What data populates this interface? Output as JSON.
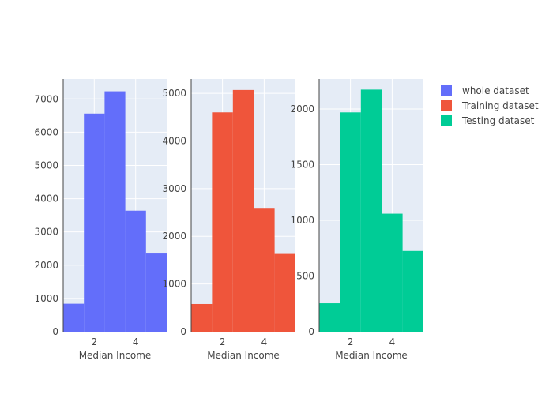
{
  "chart_data": [
    {
      "type": "bar",
      "bin_edges": [
        0.5,
        1.5,
        2.5,
        3.5,
        4.5,
        5.5
      ],
      "series": [
        {
          "name": "whole dataset",
          "color": "#636efa",
          "values": [
            840,
            6560,
            7230,
            3640,
            2350
          ]
        }
      ],
      "xlabel": "Median Income",
      "ylabel": "",
      "xlim": [
        0.5,
        5.5
      ],
      "ylim": [
        0,
        7600
      ],
      "xticks": [
        2,
        4
      ],
      "yticks": [
        0,
        1000,
        2000,
        3000,
        4000,
        5000,
        6000,
        7000
      ],
      "grid": true
    },
    {
      "type": "bar",
      "bin_edges": [
        0.5,
        1.5,
        2.5,
        3.5,
        4.5,
        5.5
      ],
      "series": [
        {
          "name": "Training dataset",
          "color": "#ef553b",
          "values": [
            580,
            4600,
            5070,
            2580,
            1630
          ]
        }
      ],
      "xlabel": "Median Income",
      "ylabel": "",
      "xlim": [
        0.5,
        5.5
      ],
      "ylim": [
        0,
        5300
      ],
      "xticks": [
        2,
        4
      ],
      "yticks": [
        0,
        1000,
        2000,
        3000,
        4000,
        5000
      ],
      "grid": true
    },
    {
      "type": "bar",
      "bin_edges": [
        0.5,
        1.5,
        2.5,
        3.5,
        4.5,
        5.5
      ],
      "series": [
        {
          "name": "Testing dataset",
          "color": "#00cc96",
          "values": [
            255,
            1970,
            2175,
            1060,
            725
          ]
        }
      ],
      "xlabel": "Median Income",
      "ylabel": "",
      "xlim": [
        0.5,
        5.5
      ],
      "ylim": [
        0,
        2270
      ],
      "xticks": [
        2,
        4
      ],
      "yticks": [
        0,
        500,
        1000,
        1500,
        2000
      ],
      "grid": true
    }
  ],
  "legend": {
    "placement": "top-right",
    "items": [
      {
        "label": "whole dataset",
        "color": "#636efa"
      },
      {
        "label": "Training dataset",
        "color": "#ef553b"
      },
      {
        "label": "Testing dataset",
        "color": "#00cc96"
      }
    ]
  },
  "style": {
    "plot_bg": "#e5ecf6",
    "grid_color": "#ffffff",
    "text_color": "#444444"
  }
}
